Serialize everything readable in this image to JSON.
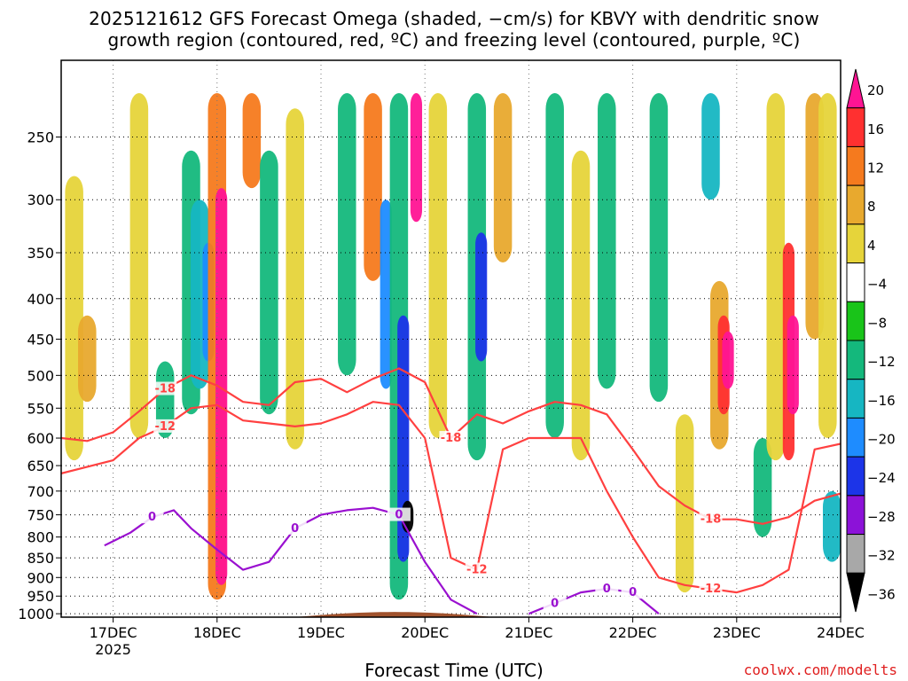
{
  "title_line1": "2025121612 GFS Forecast Omega (shaded, −cm/s) for KBVY with dendritic snow",
  "title_line2": "growth region (contoured, red, ºC) and freezing level (contoured, purple, ºC)",
  "xlabel": "Forecast Time (UTC)",
  "credit": "coolwx.com/modelts",
  "chart_data": {
    "type": "heatmap",
    "x_ticks": [
      "17DEC",
      "18DEC",
      "19DEC",
      "20DEC",
      "21DEC",
      "22DEC",
      "23DEC",
      "24DEC"
    ],
    "x_year_label": "2025",
    "x_range": [
      "2025-12-16 12Z",
      "2025-12-24 00Z"
    ],
    "y_axis": "pressure (hPa)",
    "y_scale": "log (inverted)",
    "y_ticks": [
      250,
      300,
      350,
      400,
      450,
      500,
      550,
      600,
      650,
      700,
      750,
      800,
      850,
      900,
      950,
      1000
    ],
    "ylim": [
      1010,
      200
    ],
    "grid": true,
    "colorbar": {
      "levels": [
        20,
        16,
        12,
        8,
        4,
        -4,
        -8,
        -12,
        -16,
        -20,
        -24,
        -28,
        -32,
        -36
      ],
      "colors": [
        "#ff1493",
        "#ff3030",
        "#f57a1e",
        "#e8a92e",
        "#e6d43a",
        "#ffffff",
        "#19c419",
        "#14b87c",
        "#16b6c2",
        "#1e8cff",
        "#1c34e8",
        "#8c12d8",
        "#a8a8a8",
        "#000000"
      ]
    },
    "shading_cells": [
      {
        "t": "12/16 15Z",
        "p_top": 280,
        "p_bot": 640,
        "omega": 4
      },
      {
        "t": "12/16 18Z",
        "p_top": 420,
        "p_bot": 540,
        "omega": 8
      },
      {
        "t": "12/17 06Z",
        "p_top": 220,
        "p_bot": 600,
        "omega": 4
      },
      {
        "t": "12/17 12Z",
        "p_top": 480,
        "p_bot": 600,
        "omega": -8
      },
      {
        "t": "12/17 18Z",
        "p_top": 260,
        "p_bot": 560,
        "omega": -8
      },
      {
        "t": "12/17 20Z",
        "p_top": 300,
        "p_bot": 520,
        "omega": -12
      },
      {
        "t": "12/17 22Z",
        "p_top": 340,
        "p_bot": 480,
        "omega": -16
      },
      {
        "t": "12/18 00Z",
        "p_top": 220,
        "p_bot": 960,
        "omega": 12
      },
      {
        "t": "12/18 01Z",
        "p_top": 290,
        "p_bot": 920,
        "omega": 20
      },
      {
        "t": "12/18 08Z",
        "p_top": 220,
        "p_bot": 290,
        "omega": 12
      },
      {
        "t": "12/18 12Z",
        "p_top": 260,
        "p_bot": 560,
        "omega": -8
      },
      {
        "t": "12/18 18Z",
        "p_top": 230,
        "p_bot": 620,
        "omega": 4
      },
      {
        "t": "12/19 06Z",
        "p_top": 220,
        "p_bot": 500,
        "omega": -8
      },
      {
        "t": "12/19 12Z",
        "p_top": 220,
        "p_bot": 380,
        "omega": 12
      },
      {
        "t": "12/19 15Z",
        "p_top": 300,
        "p_bot": 520,
        "omega": -16
      },
      {
        "t": "12/19 18Z",
        "p_top": 220,
        "p_bot": 960,
        "omega": -8
      },
      {
        "t": "12/19 19Z",
        "p_top": 420,
        "p_bot": 860,
        "omega": -20
      },
      {
        "t": "12/19 20Z",
        "p_top": 720,
        "p_bot": 790,
        "omega": -36
      },
      {
        "t": "12/19 22Z",
        "p_top": 220,
        "p_bot": 320,
        "omega": 20
      },
      {
        "t": "12/20 03Z",
        "p_top": 220,
        "p_bot": 600,
        "omega": 4
      },
      {
        "t": "12/20 12Z",
        "p_top": 220,
        "p_bot": 640,
        "omega": -8
      },
      {
        "t": "12/20 13Z",
        "p_top": 330,
        "p_bot": 480,
        "omega": -20
      },
      {
        "t": "12/20 18Z",
        "p_top": 220,
        "p_bot": 360,
        "omega": 8
      },
      {
        "t": "12/21 06Z",
        "p_top": 220,
        "p_bot": 600,
        "omega": -8
      },
      {
        "t": "12/21 12Z",
        "p_top": 260,
        "p_bot": 640,
        "omega": 4
      },
      {
        "t": "12/21 18Z",
        "p_top": 220,
        "p_bot": 520,
        "omega": -8
      },
      {
        "t": "12/22 06Z",
        "p_top": 220,
        "p_bot": 540,
        "omega": -8
      },
      {
        "t": "12/22 12Z",
        "p_top": 560,
        "p_bot": 940,
        "omega": 4
      },
      {
        "t": "12/22 18Z",
        "p_top": 220,
        "p_bot": 300,
        "omega": -12
      },
      {
        "t": "12/22 20Z",
        "p_top": 380,
        "p_bot": 620,
        "omega": 8
      },
      {
        "t": "12/22 21Z",
        "p_top": 420,
        "p_bot": 560,
        "omega": 16
      },
      {
        "t": "12/22 22Z",
        "p_top": 440,
        "p_bot": 520,
        "omega": 20
      },
      {
        "t": "12/23 06Z",
        "p_top": 600,
        "p_bot": 800,
        "omega": -8
      },
      {
        "t": "12/23 09Z",
        "p_top": 220,
        "p_bot": 640,
        "omega": 4
      },
      {
        "t": "12/23 12Z",
        "p_top": 340,
        "p_bot": 640,
        "omega": 16
      },
      {
        "t": "12/23 13Z",
        "p_top": 420,
        "p_bot": 560,
        "omega": 20
      },
      {
        "t": "12/23 18Z",
        "p_top": 220,
        "p_bot": 450,
        "omega": 8
      },
      {
        "t": "12/23 21Z",
        "p_top": 220,
        "p_bot": 600,
        "omega": 4
      },
      {
        "t": "12/23 22Z",
        "p_top": 700,
        "p_bot": 860,
        "omega": -12
      }
    ],
    "contours": [
      {
        "label": "-18",
        "color": "#ff4040",
        "kind": "dendritic",
        "points": [
          [
            "12/16 12Z",
            600
          ],
          [
            "12/16 18Z",
            605
          ],
          [
            "12/17 00Z",
            590
          ],
          [
            "12/17 06Z",
            555
          ],
          [
            "12/17 12Z",
            520
          ],
          [
            "12/17 18Z",
            500
          ],
          [
            "12/18 00Z",
            515
          ],
          [
            "12/18 06Z",
            540
          ],
          [
            "12/18 12Z",
            545
          ],
          [
            "12/18 18Z",
            510
          ],
          [
            "12/19 00Z",
            505
          ],
          [
            "12/19 06Z",
            525
          ],
          [
            "12/19 12Z",
            505
          ],
          [
            "12/19 18Z",
            490
          ],
          [
            "12/20 00Z",
            510
          ],
          [
            "12/20 06Z",
            600
          ],
          [
            "12/20 12Z",
            560
          ],
          [
            "12/20 18Z",
            575
          ],
          [
            "12/21 00Z",
            555
          ],
          [
            "12/21 06Z",
            540
          ],
          [
            "12/21 12Z",
            545
          ],
          [
            "12/21 18Z",
            560
          ],
          [
            "12/22 00Z",
            620
          ],
          [
            "12/22 06Z",
            690
          ],
          [
            "12/22 12Z",
            730
          ],
          [
            "12/22 18Z",
            760
          ],
          [
            "12/23 00Z",
            760
          ],
          [
            "12/23 06Z",
            770
          ],
          [
            "12/23 12Z",
            755
          ],
          [
            "12/23 18Z",
            720
          ],
          [
            "12/24 00Z",
            705
          ]
        ]
      },
      {
        "label": "-12",
        "color": "#ff4040",
        "kind": "dendritic",
        "points": [
          [
            "12/16 12Z",
            665
          ],
          [
            "12/17 00Z",
            640
          ],
          [
            "12/17 06Z",
            600
          ],
          [
            "12/17 12Z",
            580
          ],
          [
            "12/17 18Z",
            550
          ],
          [
            "12/18 00Z",
            545
          ],
          [
            "12/18 06Z",
            570
          ],
          [
            "12/18 12Z",
            575
          ],
          [
            "12/18 18Z",
            580
          ],
          [
            "12/19 00Z",
            575
          ],
          [
            "12/19 06Z",
            560
          ],
          [
            "12/19 12Z",
            540
          ],
          [
            "12/19 18Z",
            545
          ],
          [
            "12/20 00Z",
            600
          ],
          [
            "12/20 06Z",
            850
          ],
          [
            "12/20 12Z",
            880
          ],
          [
            "12/20 18Z",
            620
          ],
          [
            "12/21 00Z",
            600
          ],
          [
            "12/21 06Z",
            600
          ],
          [
            "12/21 12Z",
            600
          ],
          [
            "12/21 18Z",
            700
          ],
          [
            "12/22 00Z",
            800
          ],
          [
            "12/22 06Z",
            900
          ],
          [
            "12/22 12Z",
            920
          ],
          [
            "12/22 18Z",
            930
          ],
          [
            "12/23 00Z",
            940
          ],
          [
            "12/23 06Z",
            920
          ],
          [
            "12/23 12Z",
            880
          ],
          [
            "12/23 18Z",
            620
          ],
          [
            "12/24 00Z",
            610
          ]
        ]
      },
      {
        "label": "0",
        "color": "#9a10d0",
        "kind": "freezing",
        "points": [
          [
            "12/16 22Z",
            820
          ],
          [
            "12/17 04Z",
            790
          ],
          [
            "12/17 09Z",
            755
          ],
          [
            "12/17 14Z",
            740
          ],
          [
            "12/17 18Z",
            780
          ],
          [
            "12/18 00Z",
            830
          ],
          [
            "12/18 06Z",
            880
          ],
          [
            "12/18 12Z",
            860
          ],
          [
            "12/18 18Z",
            780
          ],
          [
            "12/19 00Z",
            750
          ],
          [
            "12/19 06Z",
            740
          ],
          [
            "12/19 12Z",
            735
          ],
          [
            "12/19 18Z",
            750
          ],
          [
            "12/20 00Z",
            860
          ],
          [
            "12/20 06Z",
            960
          ],
          [
            "12/20 12Z",
            1000
          ]
        ]
      },
      {
        "label": "0",
        "color": "#9a10d0",
        "kind": "freezing",
        "points": [
          [
            "12/21 00Z",
            1000
          ],
          [
            "12/21 06Z",
            970
          ],
          [
            "12/21 12Z",
            940
          ],
          [
            "12/21 18Z",
            930
          ],
          [
            "12/22 00Z",
            940
          ],
          [
            "12/22 06Z",
            1000
          ]
        ]
      }
    ],
    "terrain_color": "#a0522d"
  }
}
